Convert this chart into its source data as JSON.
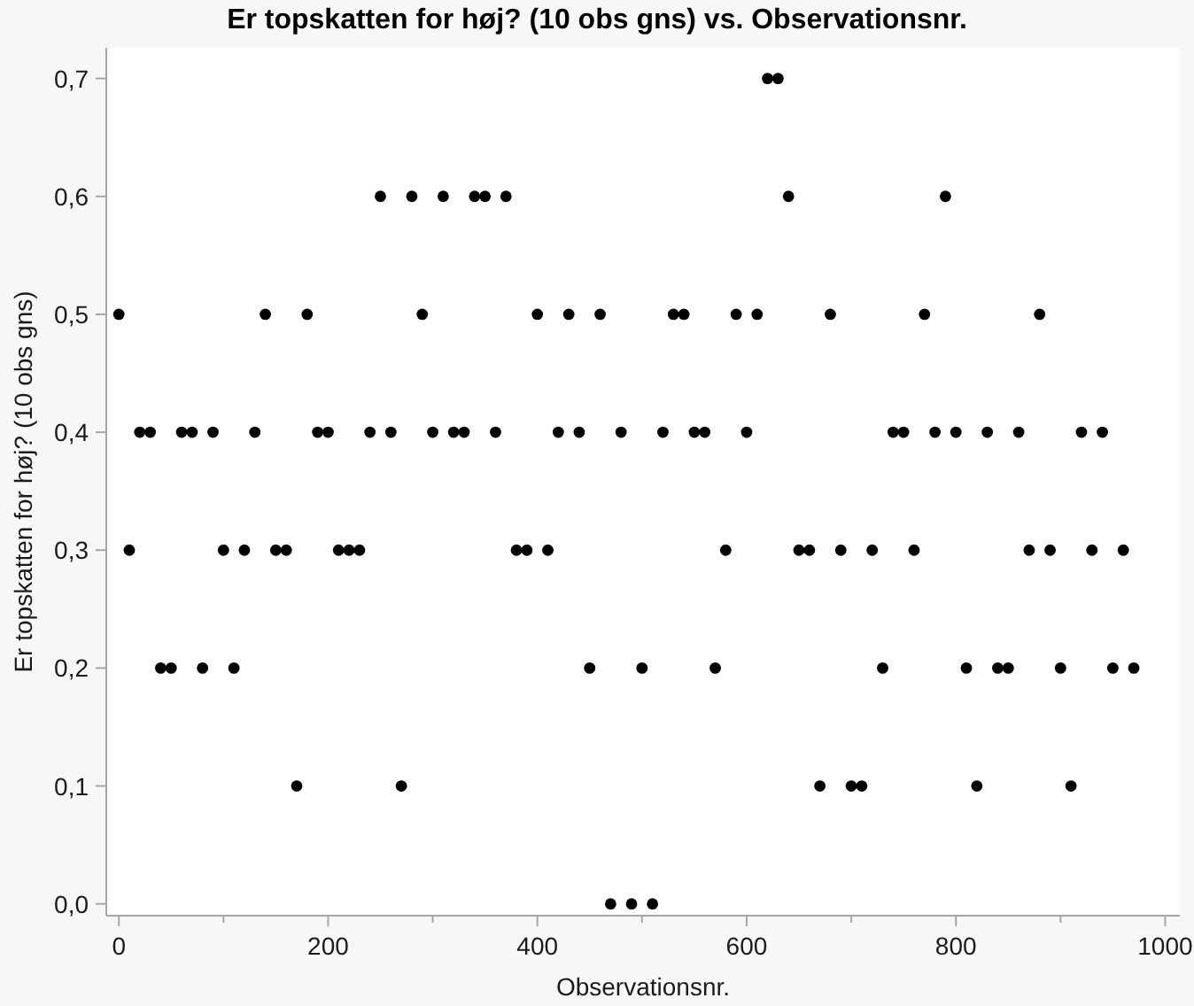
{
  "chart_data": {
    "type": "scatter",
    "title": "Er topskatten for høj? (10 obs gns) vs. Observationsnr.",
    "xlabel": "Observationsnr.",
    "ylabel": "Er topskatten for høj? (10 obs gns)",
    "x": [
      0,
      10,
      20,
      30,
      40,
      50,
      60,
      70,
      80,
      90,
      100,
      110,
      120,
      130,
      140,
      150,
      160,
      170,
      180,
      190,
      200,
      210,
      220,
      230,
      240,
      250,
      260,
      270,
      280,
      290,
      300,
      310,
      320,
      330,
      340,
      350,
      360,
      370,
      380,
      390,
      400,
      410,
      420,
      430,
      440,
      450,
      460,
      470,
      480,
      490,
      500,
      510,
      520,
      530,
      540,
      550,
      560,
      570,
      580,
      590,
      600,
      610,
      620,
      630,
      640,
      650,
      660,
      670,
      680,
      690,
      700,
      710,
      720,
      730,
      740,
      750,
      760,
      770,
      780,
      790,
      800,
      810,
      820,
      830,
      840,
      850,
      860,
      870,
      880,
      890,
      900,
      910,
      920,
      930,
      940,
      950,
      960,
      970
    ],
    "values": [
      0.5,
      0.3,
      0.4,
      0.4,
      0.2,
      0.2,
      0.4,
      0.4,
      0.2,
      0.4,
      0.3,
      0.2,
      0.3,
      0.4,
      0.5,
      0.3,
      0.3,
      0.1,
      0.5,
      0.4,
      0.4,
      0.3,
      0.3,
      0.3,
      0.4,
      0.6,
      0.4,
      0.1,
      0.6,
      0.5,
      0.4,
      0.6,
      0.4,
      0.4,
      0.6,
      0.6,
      0.4,
      0.6,
      0.3,
      0.3,
      0.5,
      0.3,
      0.4,
      0.5,
      0.4,
      0.2,
      0.5,
      0.0,
      0.4,
      0.0,
      0.2,
      0.0,
      0.4,
      0.5,
      0.5,
      0.4,
      0.4,
      0.2,
      0.3,
      0.5,
      0.4,
      0.5,
      0.7,
      0.7,
      0.6,
      0.3,
      0.3,
      0.1,
      0.5,
      0.3,
      0.1,
      0.1,
      0.3,
      0.2,
      0.4,
      0.4,
      0.3,
      0.5,
      0.4,
      0.6,
      0.4,
      0.2,
      0.1,
      0.4,
      0.2,
      0.2,
      0.4,
      0.3,
      0.5,
      0.3,
      0.2,
      0.1,
      0.4,
      0.3,
      0.4,
      0.2,
      0.3,
      0.2
    ],
    "color": "#000000",
    "marker": "circle",
    "xlim": [
      -12,
      1014
    ],
    "xticks": [
      0,
      {
        "value": 100,
        "label": null
      },
      200,
      {
        "value": 300,
        "label": null
      },
      400,
      {
        "value": 500,
        "label": null
      },
      600,
      {
        "value": 700,
        "label": null
      },
      800,
      {
        "value": 900,
        "label": null
      },
      1000
    ],
    "ylim": [
      -0.01,
      0.726
    ],
    "yticks": [
      {
        "value": 0,
        "label": "0,0"
      },
      {
        "value": 0.1,
        "label": "0,1"
      },
      {
        "value": 0.2,
        "label": "0,2"
      },
      {
        "value": 0.3,
        "label": "0,3"
      },
      {
        "value": 0.4,
        "label": "0,4"
      },
      {
        "value": 0.5,
        "label": "0,5"
      },
      {
        "value": 0.6,
        "label": "0,6"
      },
      {
        "value": 0.7,
        "label": "0,7"
      }
    ]
  }
}
